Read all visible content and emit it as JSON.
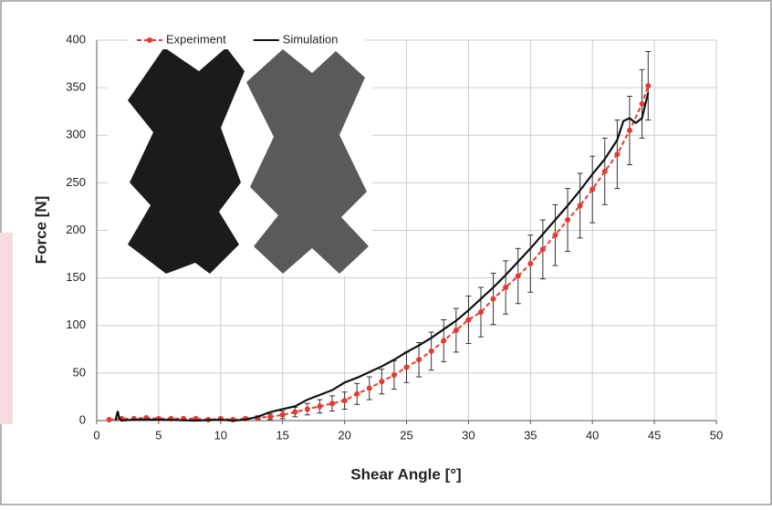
{
  "chart_data": {
    "type": "line",
    "xlabel": "Shear Angle [°]",
    "ylabel": "Force [N]",
    "xlim": [
      0,
      50
    ],
    "xticks": [
      0,
      5,
      10,
      15,
      20,
      25,
      30,
      35,
      40,
      45,
      50
    ],
    "ylim": [
      0,
      400
    ],
    "yticks": [
      0,
      50,
      100,
      150,
      200,
      250,
      300,
      350,
      400
    ],
    "grid": true,
    "legend": "top",
    "series": [
      {
        "name": "Experiment",
        "color": "#e8392f",
        "x": [
          1,
          2,
          3,
          4,
          5,
          6,
          7,
          8,
          9,
          10,
          11,
          12,
          13,
          14,
          15,
          16,
          17,
          18,
          19,
          20,
          21,
          22,
          23,
          24,
          25,
          26,
          27,
          28,
          29,
          30,
          31,
          32,
          33,
          34,
          35,
          36,
          37,
          38,
          39,
          40,
          41,
          42,
          43,
          44,
          44.5
        ],
        "values": [
          1,
          2,
          2,
          3,
          2,
          2,
          2,
          2,
          1,
          2,
          1,
          2,
          3,
          4,
          6,
          9,
          12,
          15,
          18,
          21,
          28,
          34,
          41,
          48,
          56,
          64,
          73,
          84,
          95,
          106,
          114,
          128,
          140,
          152,
          165,
          180,
          195,
          211,
          226,
          243,
          262,
          280,
          305,
          333,
          352
        ],
        "errors": [
          0,
          0,
          0,
          0,
          0,
          0,
          0,
          0,
          0,
          0,
          0,
          1,
          2,
          3,
          4,
          5,
          6,
          7,
          8,
          9,
          11,
          12,
          13,
          15,
          16,
          18,
          20,
          22,
          23,
          25,
          26,
          27,
          28,
          29,
          30,
          31,
          32,
          33,
          34,
          35,
          35,
          36,
          36,
          36,
          36
        ]
      },
      {
        "name": "Simulation",
        "color": "#111111",
        "x": [
          1.5,
          1.7,
          1.8,
          2,
          3,
          5,
          8,
          10,
          11,
          12,
          13,
          14,
          15,
          16,
          17,
          18,
          19,
          20,
          21,
          22,
          23,
          24,
          25,
          26,
          27,
          28,
          29,
          30,
          31,
          32,
          33,
          34,
          35,
          36,
          37,
          38,
          39,
          40,
          41,
          42,
          42.5,
          43,
          43.5,
          44,
          44.5
        ],
        "values": [
          0,
          10,
          3,
          0,
          1,
          1,
          0,
          1,
          0,
          1,
          4,
          9,
          12,
          15,
          22,
          27,
          32,
          40,
          45,
          51,
          57,
          64,
          72,
          79,
          87,
          96,
          105,
          116,
          128,
          140,
          153,
          167,
          181,
          196,
          211,
          226,
          242,
          259,
          275,
          295,
          315,
          318,
          313,
          318,
          345
        ]
      }
    ]
  }
}
